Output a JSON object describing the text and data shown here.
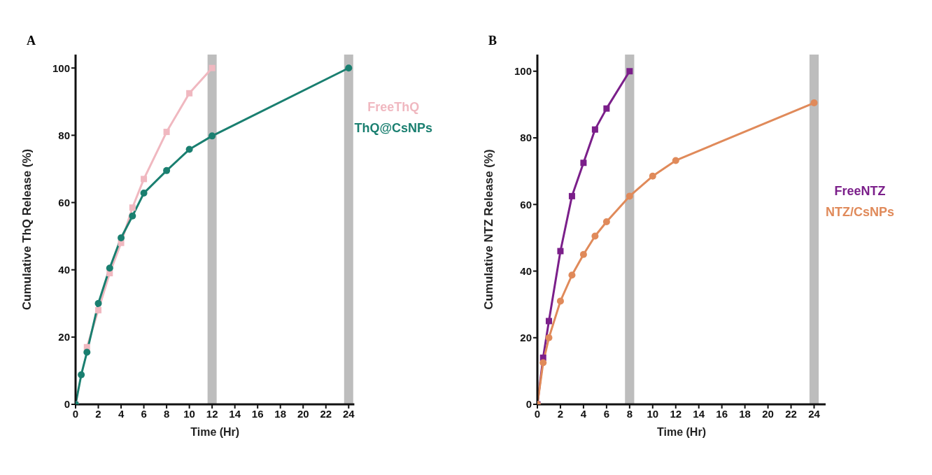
{
  "chart_data": [
    {
      "type": "line",
      "title": "A",
      "xlabel": "Time (Hr)",
      "ylabel": "Cumulative ThQ Release (%)",
      "xlim": [
        0,
        24.5
      ],
      "xticks": [
        0,
        2,
        4,
        6,
        8,
        10,
        12,
        14,
        16,
        18,
        20,
        22,
        24
      ],
      "ylim": [
        0,
        104
      ],
      "yticks": [
        0,
        20,
        40,
        60,
        80,
        100
      ],
      "grid": false,
      "legend": "top right",
      "bands": [
        {
          "axis": "x",
          "from": 11.6,
          "to": 12.4,
          "color": "#bdbdbd"
        },
        {
          "axis": "x",
          "from": 23.6,
          "to": 24.4,
          "color": "#bdbdbd"
        }
      ],
      "series": [
        {
          "name": "FreeThQ",
          "color": "#f0b8c0",
          "marker": "square",
          "x": [
            0,
            0.5,
            1,
            2,
            3,
            4,
            5,
            6,
            8,
            10,
            12
          ],
          "values": [
            0,
            null,
            17,
            28,
            39,
            48,
            58.5,
            67,
            81,
            92.5,
            100
          ]
        },
        {
          "name": "ThQ@CsNPs",
          "color": "#1a7f70",
          "marker": "circle",
          "x": [
            0,
            0.5,
            1,
            2,
            3,
            4,
            5,
            6,
            8,
            10,
            12,
            24
          ],
          "values": [
            0,
            8.8,
            15.5,
            30,
            40.5,
            49.5,
            56,
            62.8,
            69.5,
            75.8,
            79.8,
            100
          ]
        }
      ]
    },
    {
      "type": "line",
      "title": "B",
      "xlabel": "Time (Hr)",
      "ylabel": "Cumulative NTZ Release (%)",
      "xlim": [
        0,
        25
      ],
      "xticks": [
        0,
        2,
        4,
        6,
        8,
        10,
        12,
        14,
        16,
        18,
        20,
        22,
        24
      ],
      "ylim": [
        0,
        105
      ],
      "yticks": [
        0,
        20,
        40,
        60,
        80,
        100
      ],
      "grid": false,
      "legend": "right",
      "bands": [
        {
          "axis": "x",
          "from": 7.6,
          "to": 8.4,
          "color": "#bdbdbd"
        },
        {
          "axis": "x",
          "from": 23.6,
          "to": 24.4,
          "color": "#bdbdbd"
        }
      ],
      "series": [
        {
          "name": "FreeNTZ",
          "color": "#7b1f8a",
          "marker": "square",
          "x": [
            0,
            0.5,
            1,
            2,
            3,
            4,
            5,
            6,
            8
          ],
          "values": [
            0,
            14,
            25,
            46,
            62.5,
            72.5,
            82.5,
            88.8,
            100
          ]
        },
        {
          "name": "NTZ/CsNPs",
          "color": "#e08a5a",
          "marker": "circle",
          "x": [
            0,
            0.5,
            1,
            2,
            3,
            4,
            5,
            6,
            8,
            10,
            12,
            24
          ],
          "values": [
            0,
            12.5,
            20,
            31,
            38.8,
            45,
            50.5,
            54.8,
            62.5,
            68.5,
            73.2,
            90.5
          ]
        }
      ]
    }
  ]
}
